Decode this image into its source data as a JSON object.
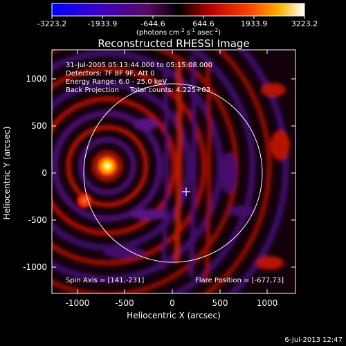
{
  "colorbar": {
    "ticks": [
      "-3223.2",
      "-1933.9",
      "-644.6",
      "644.6",
      "1933.9",
      "3223.2"
    ],
    "units_label": "(photons cm",
    "units_exp1": "-2",
    "units_mid": " s",
    "units_exp2": "-1",
    "units_tail": " asec",
    "units_exp3": "-2",
    "units_close": ")"
  },
  "image": {
    "title": "Reconstructed RHESSI Image",
    "info_lines": [
      "31-Jul-2005 05:13:44.000 to 05:15:08.000",
      "Detectors: 7F 8F 9F, Att 0",
      "Energy Range: 6.0 - 25.0 keV",
      "Back Projection     Total counts: 4.225+03"
    ],
    "spin_axis": "Spin Axis = [141,-231]",
    "flare_position": "Flare Position = [-677,73]"
  },
  "axes": {
    "xlabel": "Heliocentric X (arcsec)",
    "ylabel": "Heliocentric Y (arcsec)",
    "xticks": [
      "-1000",
      "-500",
      "0",
      "500",
      "1000"
    ],
    "yticks": [
      "1000",
      "500",
      "0",
      "-500",
      "-1000"
    ]
  },
  "footer": {
    "timestamp": "6-Jul-2013 12:47"
  }
}
